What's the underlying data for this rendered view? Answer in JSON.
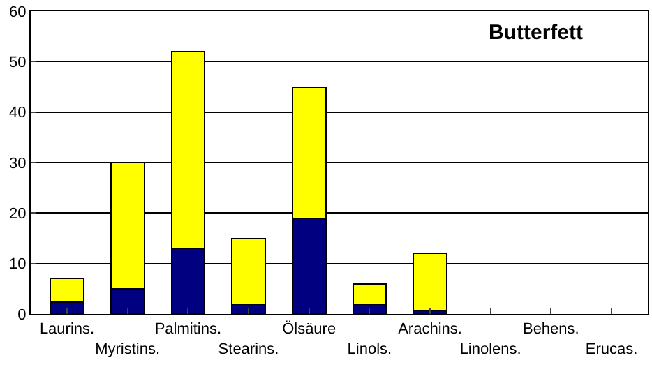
{
  "chart_data": {
    "type": "bar",
    "title": "Butterfett",
    "stacked": true,
    "categories": [
      "Laurins.",
      "Myristins.",
      "Palmitins.",
      "Stearins.",
      "Ölsäure",
      "Linols.",
      "Arachins.",
      "Linolens.",
      "Behens.",
      "Erucas."
    ],
    "series": [
      {
        "color": "#000080",
        "values": [
          2.4,
          5,
          13,
          2,
          19,
          2,
          0.7,
          null,
          null,
          null
        ]
      },
      {
        "color": "#ffff00",
        "values": [
          4.6,
          25,
          39,
          13,
          26,
          4,
          11.3,
          null,
          null,
          null
        ]
      }
    ],
    "ylim": [
      0,
      60
    ],
    "yticks": [
      0,
      10,
      20,
      30,
      40,
      50,
      60
    ],
    "grid": "y"
  }
}
